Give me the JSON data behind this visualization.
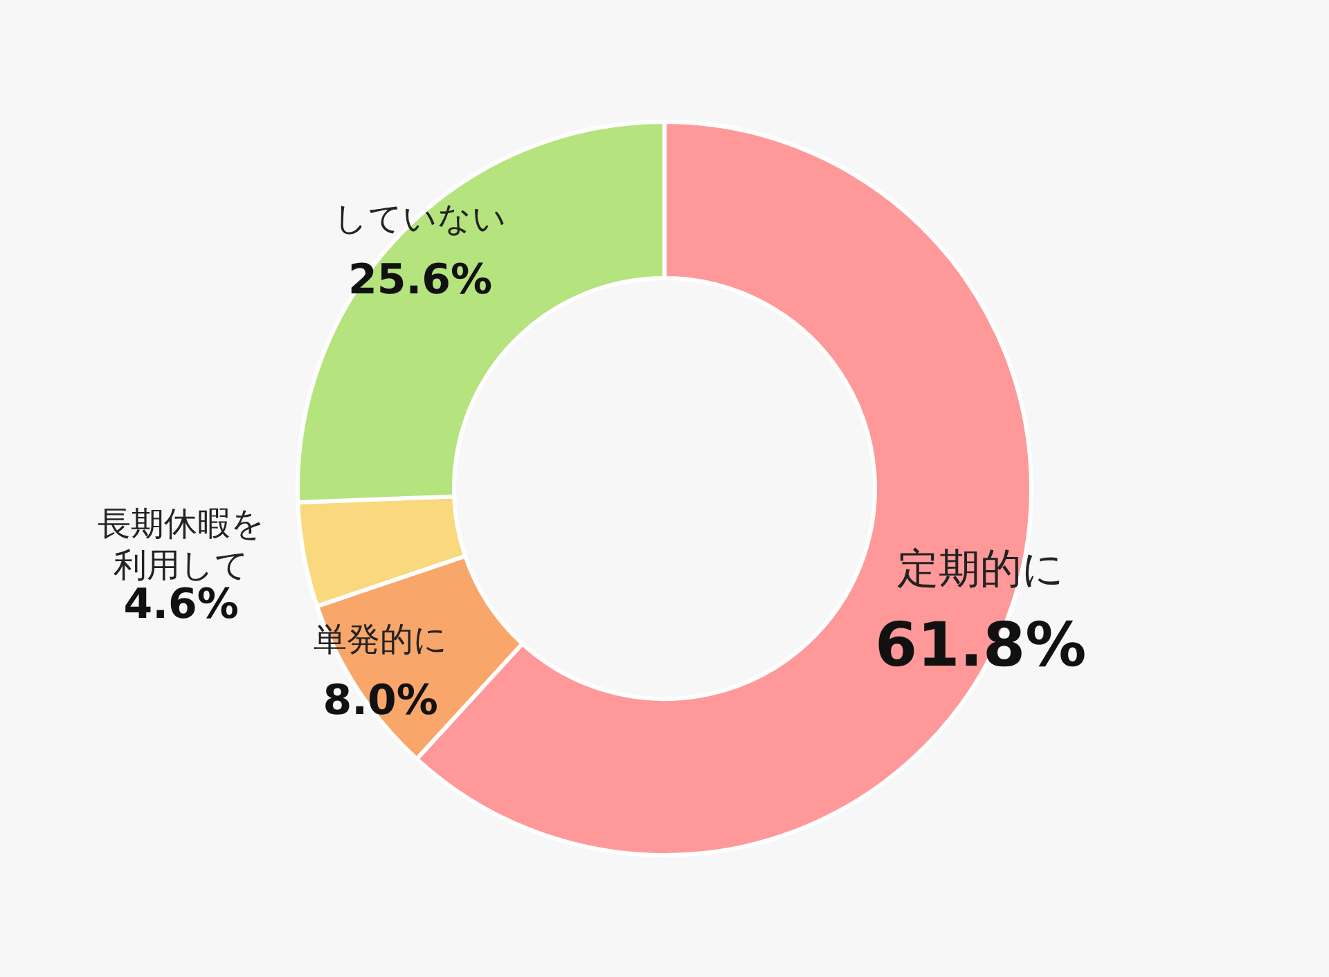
{
  "chart_data": {
    "type": "donut",
    "categories": [
      "定期的に",
      "単発的に",
      "長期休暇を利用して",
      "していない"
    ],
    "values": [
      61.8,
      8.0,
      4.6,
      25.6
    ],
    "value_labels": [
      "61.8%",
      "8.0%",
      "4.6%",
      "25.6%"
    ],
    "colors": [
      "#ff9999",
      "#f9a66b",
      "#f9d87e",
      "#b5e37e"
    ]
  }
}
